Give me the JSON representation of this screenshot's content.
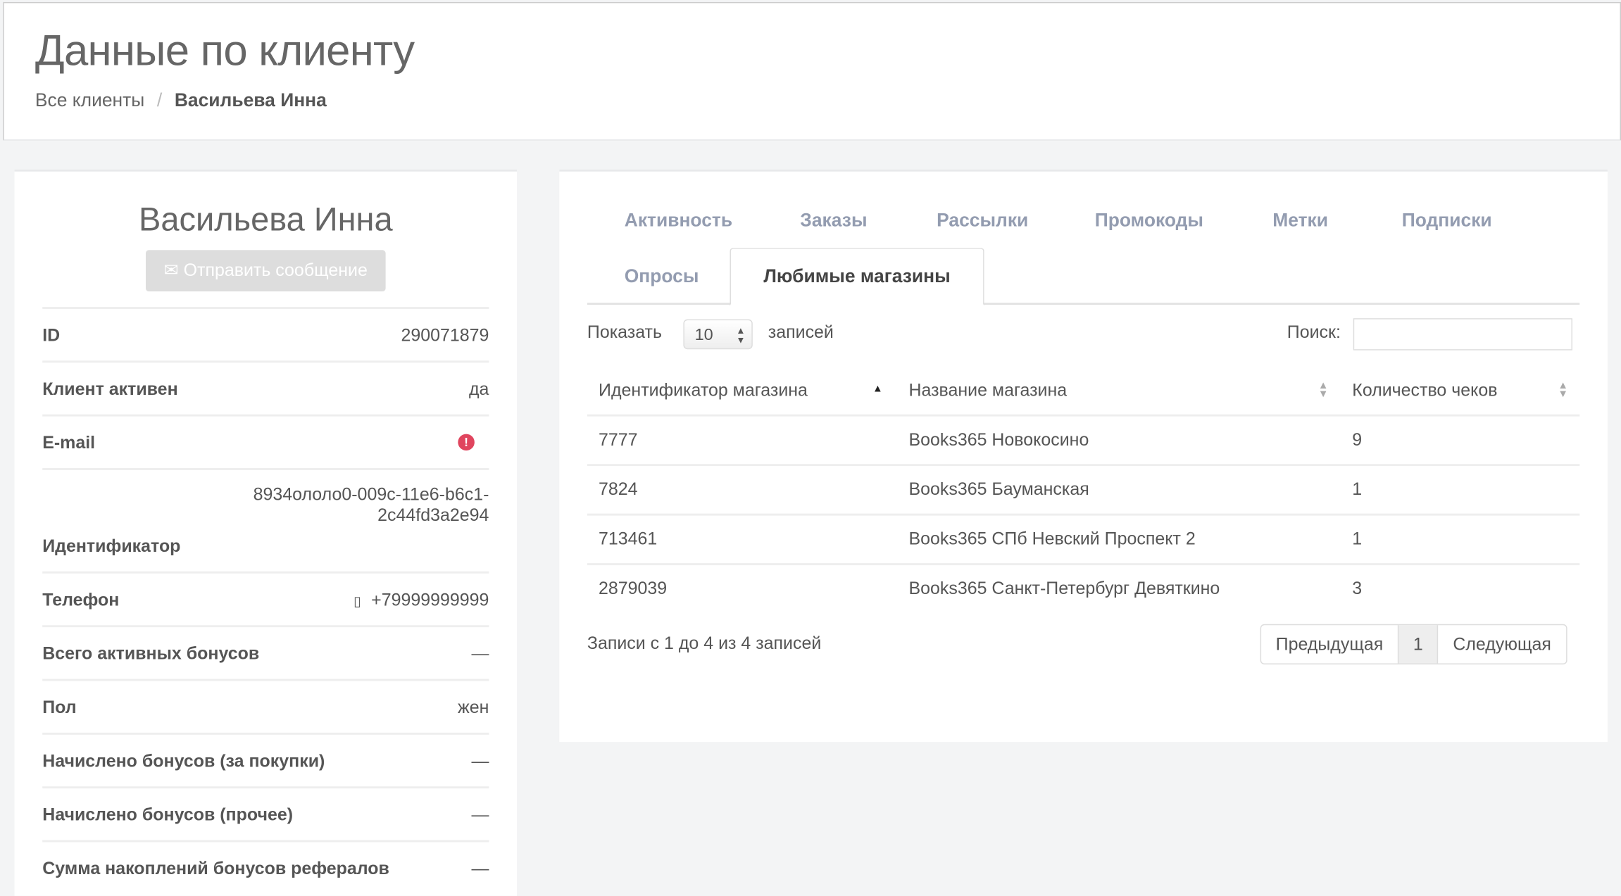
{
  "header": {
    "title": "Данные по клиенту",
    "breadcrumb": {
      "parent": "Все клиенты",
      "separator": "/",
      "current": "Васильева Инна"
    }
  },
  "profile": {
    "name": "Васильева Инна",
    "send_message_label": "Отправить сообщение",
    "send_icon": "envelope-icon",
    "fields": [
      {
        "label": "ID",
        "value": "290071879"
      },
      {
        "label": "Клиент активен",
        "value": "да"
      },
      {
        "label": "E-mail",
        "value": "",
        "icon": "exclamation-circle-icon",
        "icon_color": "#e0455e"
      },
      {
        "label": "Идентификатор",
        "value_line1": "8934ололо0-009c-11e6-b6c1-",
        "value_line2": "2c44fd3a2e94"
      },
      {
        "label": "Телефон",
        "value": "+79999999999",
        "icon": "mobile-phone-icon"
      },
      {
        "label": "Всего активных бонусов",
        "value": "—"
      },
      {
        "label": "Пол",
        "value": "жен"
      },
      {
        "label": "Начислено бонусов (за покупки)",
        "value": "—"
      },
      {
        "label": "Начислено бонусов (прочее)",
        "value": "—"
      },
      {
        "label": "Сумма накоплений бонусов рефералов",
        "value": "—"
      }
    ]
  },
  "tabs": [
    "Активность",
    "Заказы",
    "Рассылки",
    "Промокоды",
    "Метки",
    "Подписки",
    "Опросы",
    "Любимые магазины"
  ],
  "active_tab": "Любимые магазины",
  "table_controls": {
    "show_label": "Показать",
    "page_size": "10",
    "records_label": "записей",
    "search_label": "Поиск:",
    "search_value": ""
  },
  "table": {
    "columns": [
      "Идентификатор магазина",
      "Название магазина",
      "Количество чеков"
    ],
    "sorted_column": "Идентификатор магазина",
    "sort_direction": "asc",
    "rows": [
      [
        "7777",
        "Books365 Новокосино",
        "9"
      ],
      [
        "7824",
        "Books365 Бауманская",
        "1"
      ],
      [
        "713461",
        "Books365 СПб Невский Проспект 2",
        "1"
      ],
      [
        "2879039",
        "Books365 Санкт-Петербург Девяткино",
        "3"
      ]
    ]
  },
  "footer": {
    "info": "Записи с 1 до 4 из 4 записей",
    "prev": "Предыдущая",
    "page": "1",
    "next": "Следующая"
  }
}
